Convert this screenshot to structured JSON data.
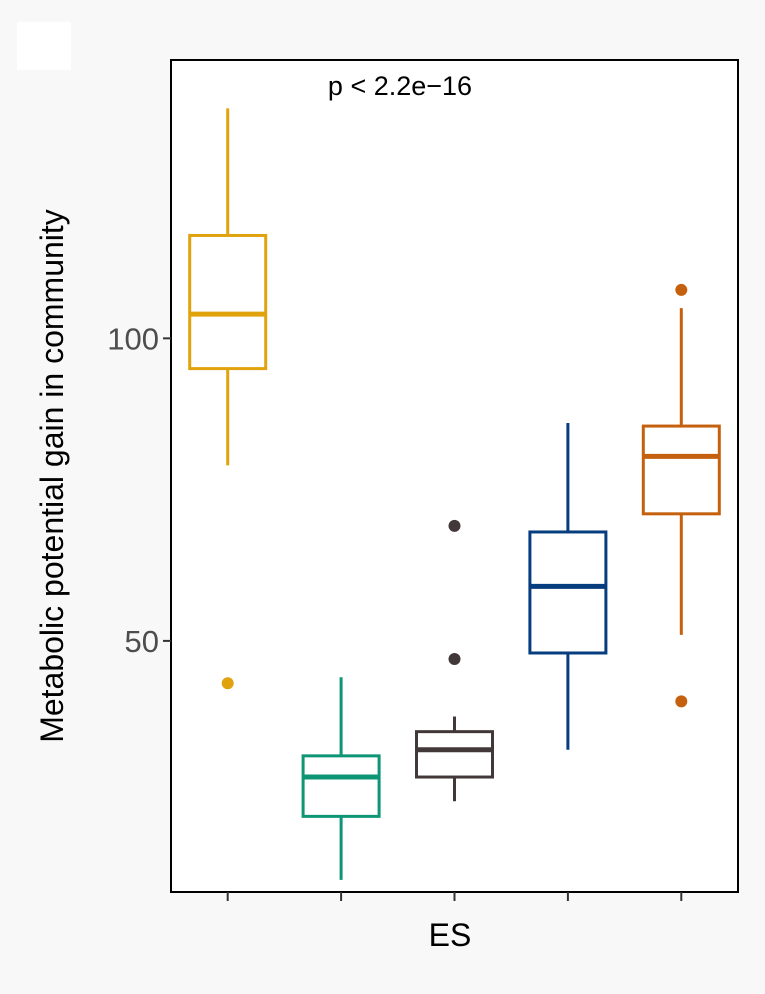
{
  "chart_data": {
    "type": "box",
    "xlabel": "ES",
    "ylabel": "Metabolic potential gain in community",
    "annotation": "p < 2.2e−16",
    "yticks": [
      50,
      100
    ],
    "ylim": [
      8.5,
      146
    ],
    "grid": false,
    "legend": "none",
    "series": [
      {
        "color": "#E0A30E",
        "whisker_low": 79,
        "q1": 95,
        "median": 104,
        "q3": 117,
        "whisker_high": 138,
        "outliers": [
          43
        ]
      },
      {
        "color": "#0E9575",
        "whisker_low": 10.5,
        "q1": 21,
        "median": 27.5,
        "q3": 31,
        "whisker_high": 44,
        "outliers": []
      },
      {
        "color": "#433839",
        "whisker_low": 23.5,
        "q1": 27.5,
        "median": 32,
        "q3": 35,
        "whisker_high": 37.5,
        "outliers": [
          47,
          69
        ]
      },
      {
        "color": "#063D7F",
        "whisker_low": 32,
        "q1": 48,
        "median": 59,
        "q3": 68,
        "whisker_high": 86,
        "outliers": []
      },
      {
        "color": "#C5610E",
        "whisker_low": 51,
        "q1": 71,
        "median": 80.5,
        "q3": 85.5,
        "whisker_high": 105,
        "outliers": [
          108,
          40
        ]
      }
    ]
  }
}
